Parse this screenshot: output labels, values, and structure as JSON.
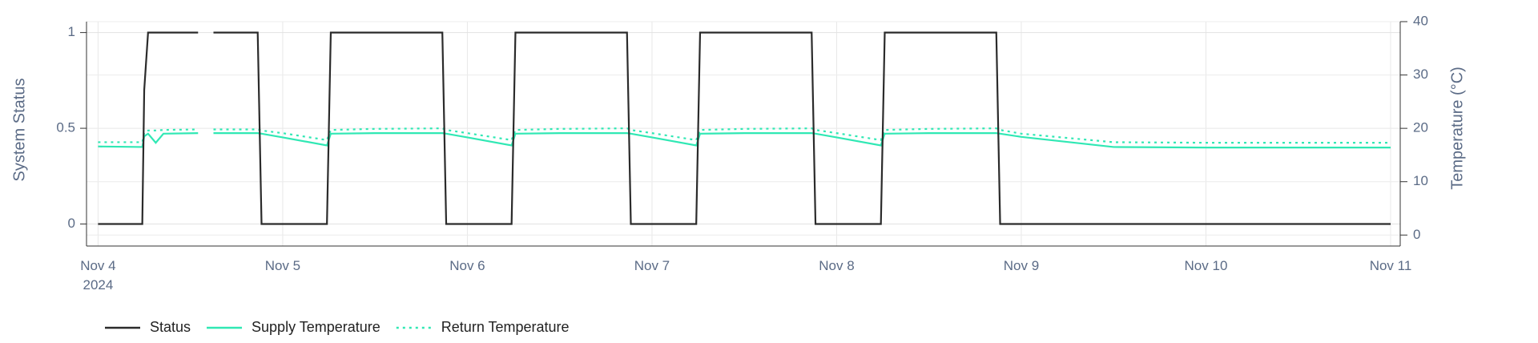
{
  "chart_data": {
    "type": "line",
    "y_label": "System Status",
    "y2_label": "Temperature (°C)",
    "x": [
      "2024-11-04T00:00",
      "2024-11-04T05:45",
      "2024-11-04T06:00",
      "2024-11-04T06:30",
      "2024-11-04T07:30",
      "2024-11-04T08:30",
      "2024-11-04T13:00",
      "2024-11-04T13:30",
      "2024-11-04T15:00",
      "2024-11-04T20:45",
      "2024-11-04T21:15",
      "2024-11-05T00:00",
      "2024-11-05T05:45",
      "2024-11-05T06:15",
      "2024-11-05T12:00",
      "2024-11-05T20:45",
      "2024-11-05T21:15",
      "2024-11-06T00:00",
      "2024-11-06T05:45",
      "2024-11-06T06:15",
      "2024-11-06T12:00",
      "2024-11-06T20:45",
      "2024-11-06T21:15",
      "2024-11-07T00:00",
      "2024-11-07T05:45",
      "2024-11-07T06:15",
      "2024-11-07T12:00",
      "2024-11-07T20:45",
      "2024-11-07T21:15",
      "2024-11-08T00:00",
      "2024-11-08T05:45",
      "2024-11-08T06:15",
      "2024-11-08T12:00",
      "2024-11-08T20:45",
      "2024-11-08T21:15",
      "2024-11-09T00:00",
      "2024-11-09T12:00",
      "2024-11-10T00:00",
      "2024-11-11T00:00"
    ],
    "series": [
      {
        "name": "Status",
        "color": "#2b2b2b",
        "dash": "solid",
        "axis": "y",
        "values": [
          0,
          0,
          0.7,
          1,
          1,
          1,
          1,
          null,
          1,
          1,
          0,
          0,
          0,
          1,
          1,
          1,
          0,
          0,
          0,
          1,
          1,
          1,
          0,
          0,
          0,
          1,
          1,
          1,
          0,
          0,
          0,
          1,
          1,
          1,
          0,
          0,
          0,
          0,
          0
        ]
      },
      {
        "name": "Supply Temperature",
        "color": "#30e8b4",
        "dash": "solid",
        "axis": "y2",
        "values": [
          16.6,
          16.5,
          18.5,
          19.0,
          17.3,
          19.0,
          19.1,
          null,
          19.1,
          19.1,
          19.0,
          18.3,
          16.8,
          19.0,
          19.1,
          19.1,
          19.0,
          18.3,
          16.8,
          19.0,
          19.1,
          19.1,
          19.0,
          18.3,
          16.8,
          19.0,
          19.1,
          19.1,
          19.0,
          18.3,
          16.8,
          19.0,
          19.1,
          19.1,
          19.0,
          18.4,
          16.5,
          16.4,
          16.4
        ]
      },
      {
        "name": "Return Temperature",
        "color": "#30e8b4",
        "dash": "dot",
        "axis": "y2",
        "values": [
          17.4,
          17.4,
          19.2,
          19.6,
          19.6,
          19.7,
          19.8,
          null,
          19.8,
          19.8,
          19.6,
          19.1,
          17.8,
          19.7,
          19.9,
          20.0,
          19.7,
          19.1,
          17.8,
          19.7,
          19.9,
          20.0,
          19.7,
          19.1,
          17.8,
          19.7,
          19.9,
          20.0,
          19.7,
          19.1,
          17.8,
          19.7,
          19.9,
          20.0,
          19.7,
          19.0,
          17.4,
          17.3,
          17.3
        ]
      }
    ],
    "xlim": [
      "2024-11-03T22:30",
      "2024-11-11T01:15"
    ],
    "xticks": [
      {
        "value": "2024-11-04T00:00",
        "label": "Nov 4\n2024"
      },
      {
        "value": "2024-11-05T00:00",
        "label": "Nov 5"
      },
      {
        "value": "2024-11-06T00:00",
        "label": "Nov 6"
      },
      {
        "value": "2024-11-07T00:00",
        "label": "Nov 7"
      },
      {
        "value": "2024-11-08T00:00",
        "label": "Nov 8"
      },
      {
        "value": "2024-11-09T00:00",
        "label": "Nov 9"
      },
      {
        "value": "2024-11-10T00:00",
        "label": "Nov 10"
      },
      {
        "value": "2024-11-11T00:00",
        "label": "Nov 11"
      }
    ],
    "ylim": [
      -0.115,
      1.057
    ],
    "yticks": [
      0,
      0.5,
      1
    ],
    "y2lim": [
      -2.06,
      40
    ],
    "y2ticks": [
      0,
      10,
      20,
      30,
      40
    ],
    "grid": true,
    "legend": "bottom-left"
  }
}
